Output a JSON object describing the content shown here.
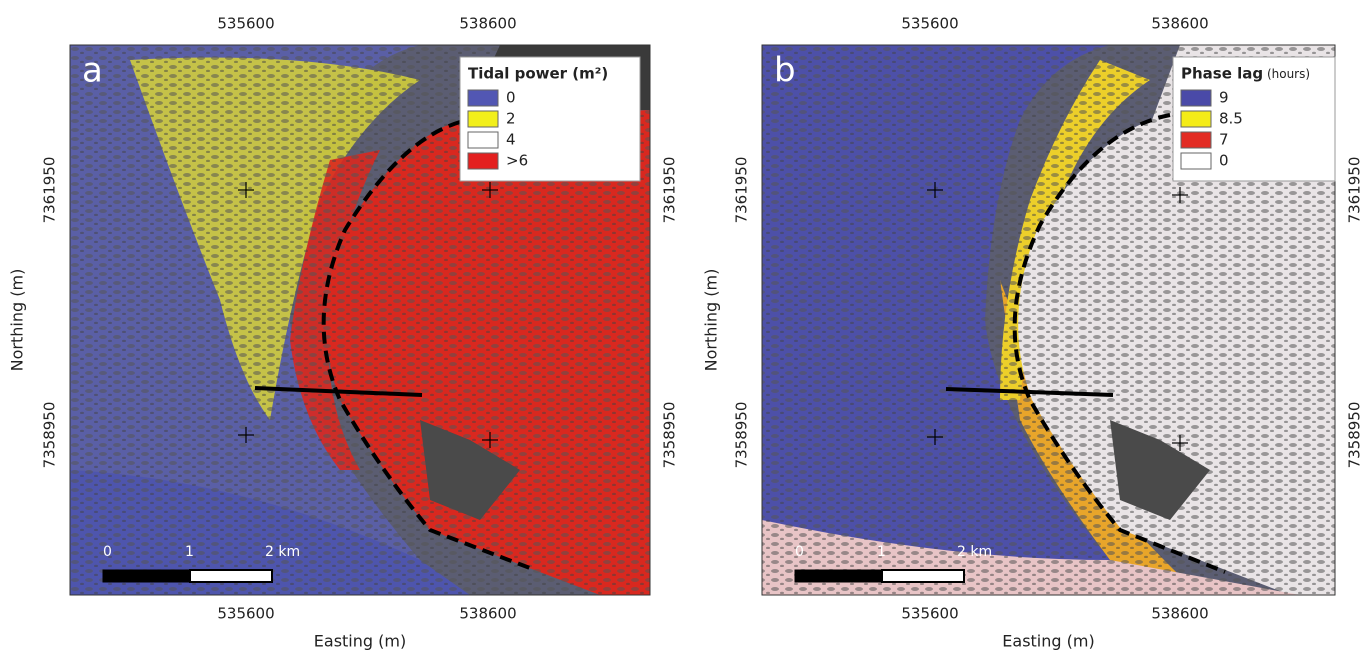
{
  "panels": [
    {
      "letter": "a",
      "legend": {
        "title": "Tidal power (m²)",
        "items": [
          {
            "label": "0",
            "color": "#5257b3"
          },
          {
            "label": "2",
            "color": "#f2ef1a"
          },
          {
            "label": "4",
            "color": "#ffffff"
          },
          {
            "label": ">6",
            "color": "#e3201f"
          }
        ]
      },
      "x_ticks_top": [
        "535600",
        "538600"
      ],
      "x_ticks_bottom": [
        "535600",
        "538600"
      ],
      "y_ticks_left": [
        "7361950",
        "7358950"
      ],
      "y_ticks_right": [
        "7361950",
        "7358950"
      ],
      "x_label": "Easting (m)",
      "y_label": "Northing (m)",
      "scale_bar": [
        "0",
        "1",
        "2 km"
      ]
    },
    {
      "letter": "b",
      "legend": {
        "title": "Phase lag",
        "title_unit": "(hours)",
        "items": [
          {
            "label": "9",
            "color": "#4a4aa8"
          },
          {
            "label": "8.5",
            "color": "#f4ec18"
          },
          {
            "label": "7",
            "color": "#e22b23"
          },
          {
            "label": "0",
            "color": "#ffffff"
          }
        ]
      },
      "x_ticks_top": [
        "535600",
        "538600"
      ],
      "x_ticks_bottom": [
        "535600",
        "538600"
      ],
      "y_ticks_left": [
        "7361950",
        "7358950"
      ],
      "y_ticks_right": [
        "7361950",
        "7358950"
      ],
      "x_label": "Easting (m)",
      "y_label": "Northing (m)",
      "scale_bar": [
        "0",
        "1",
        "2 km"
      ]
    }
  ]
}
